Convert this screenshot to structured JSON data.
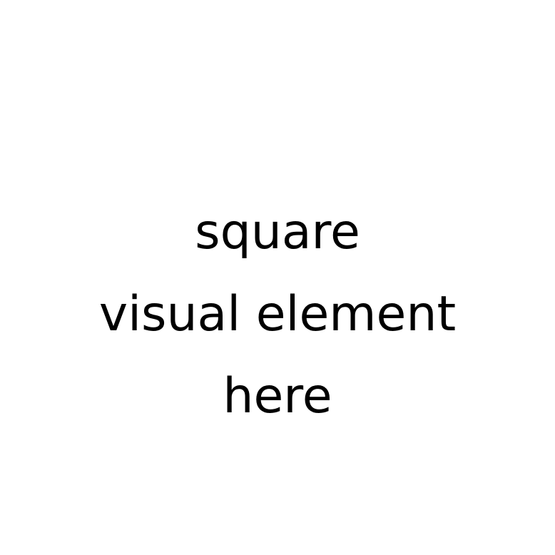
{
  "placeholder": {
    "lines": [
      "square",
      "visual element",
      "here"
    ]
  },
  "colors": {
    "background": "#ffffff",
    "text": "#000000"
  }
}
